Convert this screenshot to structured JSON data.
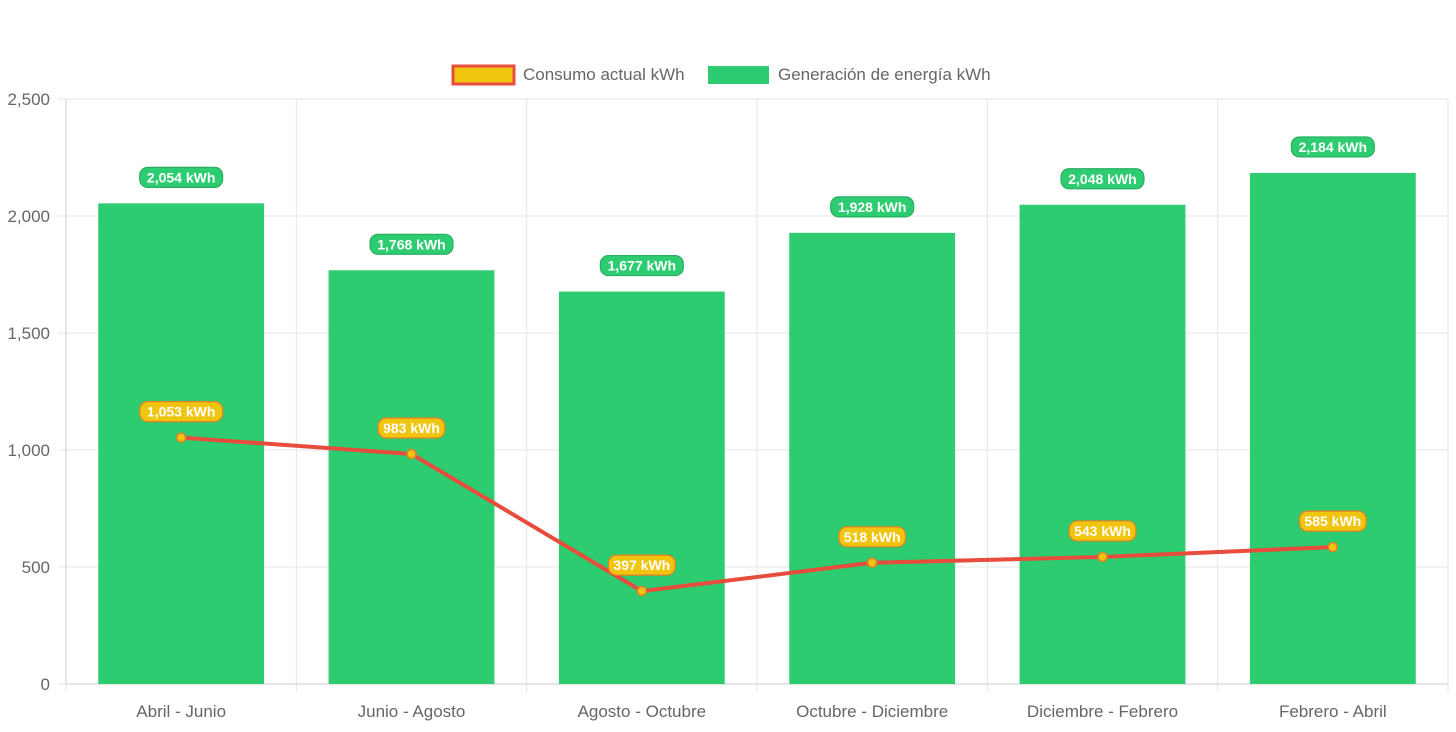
{
  "chart_data": {
    "type": "bar",
    "categories": [
      "Abril - Junio",
      "Junio - Agosto",
      "Agosto - Octubre",
      "Octubre - Diciembre",
      "Diciembre - Febrero",
      "Febrero - Abril"
    ],
    "series": [
      {
        "name": "Consumo actual kWh",
        "type": "line",
        "values": [
          1053,
          983,
          397,
          518,
          543,
          585
        ],
        "labels": [
          "1,053 kWh",
          "983 kWh",
          "397 kWh",
          "518 kWh",
          "543 kWh",
          "585 kWh"
        ],
        "color": "#e74c3c",
        "fill": "#f1c40f"
      },
      {
        "name": "Generación de energía kWh",
        "type": "bar",
        "values": [
          2054,
          1768,
          1677,
          1928,
          2048,
          2184
        ],
        "labels": [
          "2,054 kWh",
          "1,768 kWh",
          "1,677 kWh",
          "1,928 kWh",
          "2,048 kWh",
          "2,184 kWh"
        ],
        "color": "#2ecc71"
      }
    ],
    "ylim": [
      0,
      2500
    ],
    "yticks": [
      0,
      500,
      1000,
      1500,
      2000,
      2500
    ],
    "ytick_labels": [
      "0",
      "500",
      "1,000",
      "1,500",
      "2,000",
      "2,500"
    ],
    "grid": true,
    "legend": "top-center"
  }
}
